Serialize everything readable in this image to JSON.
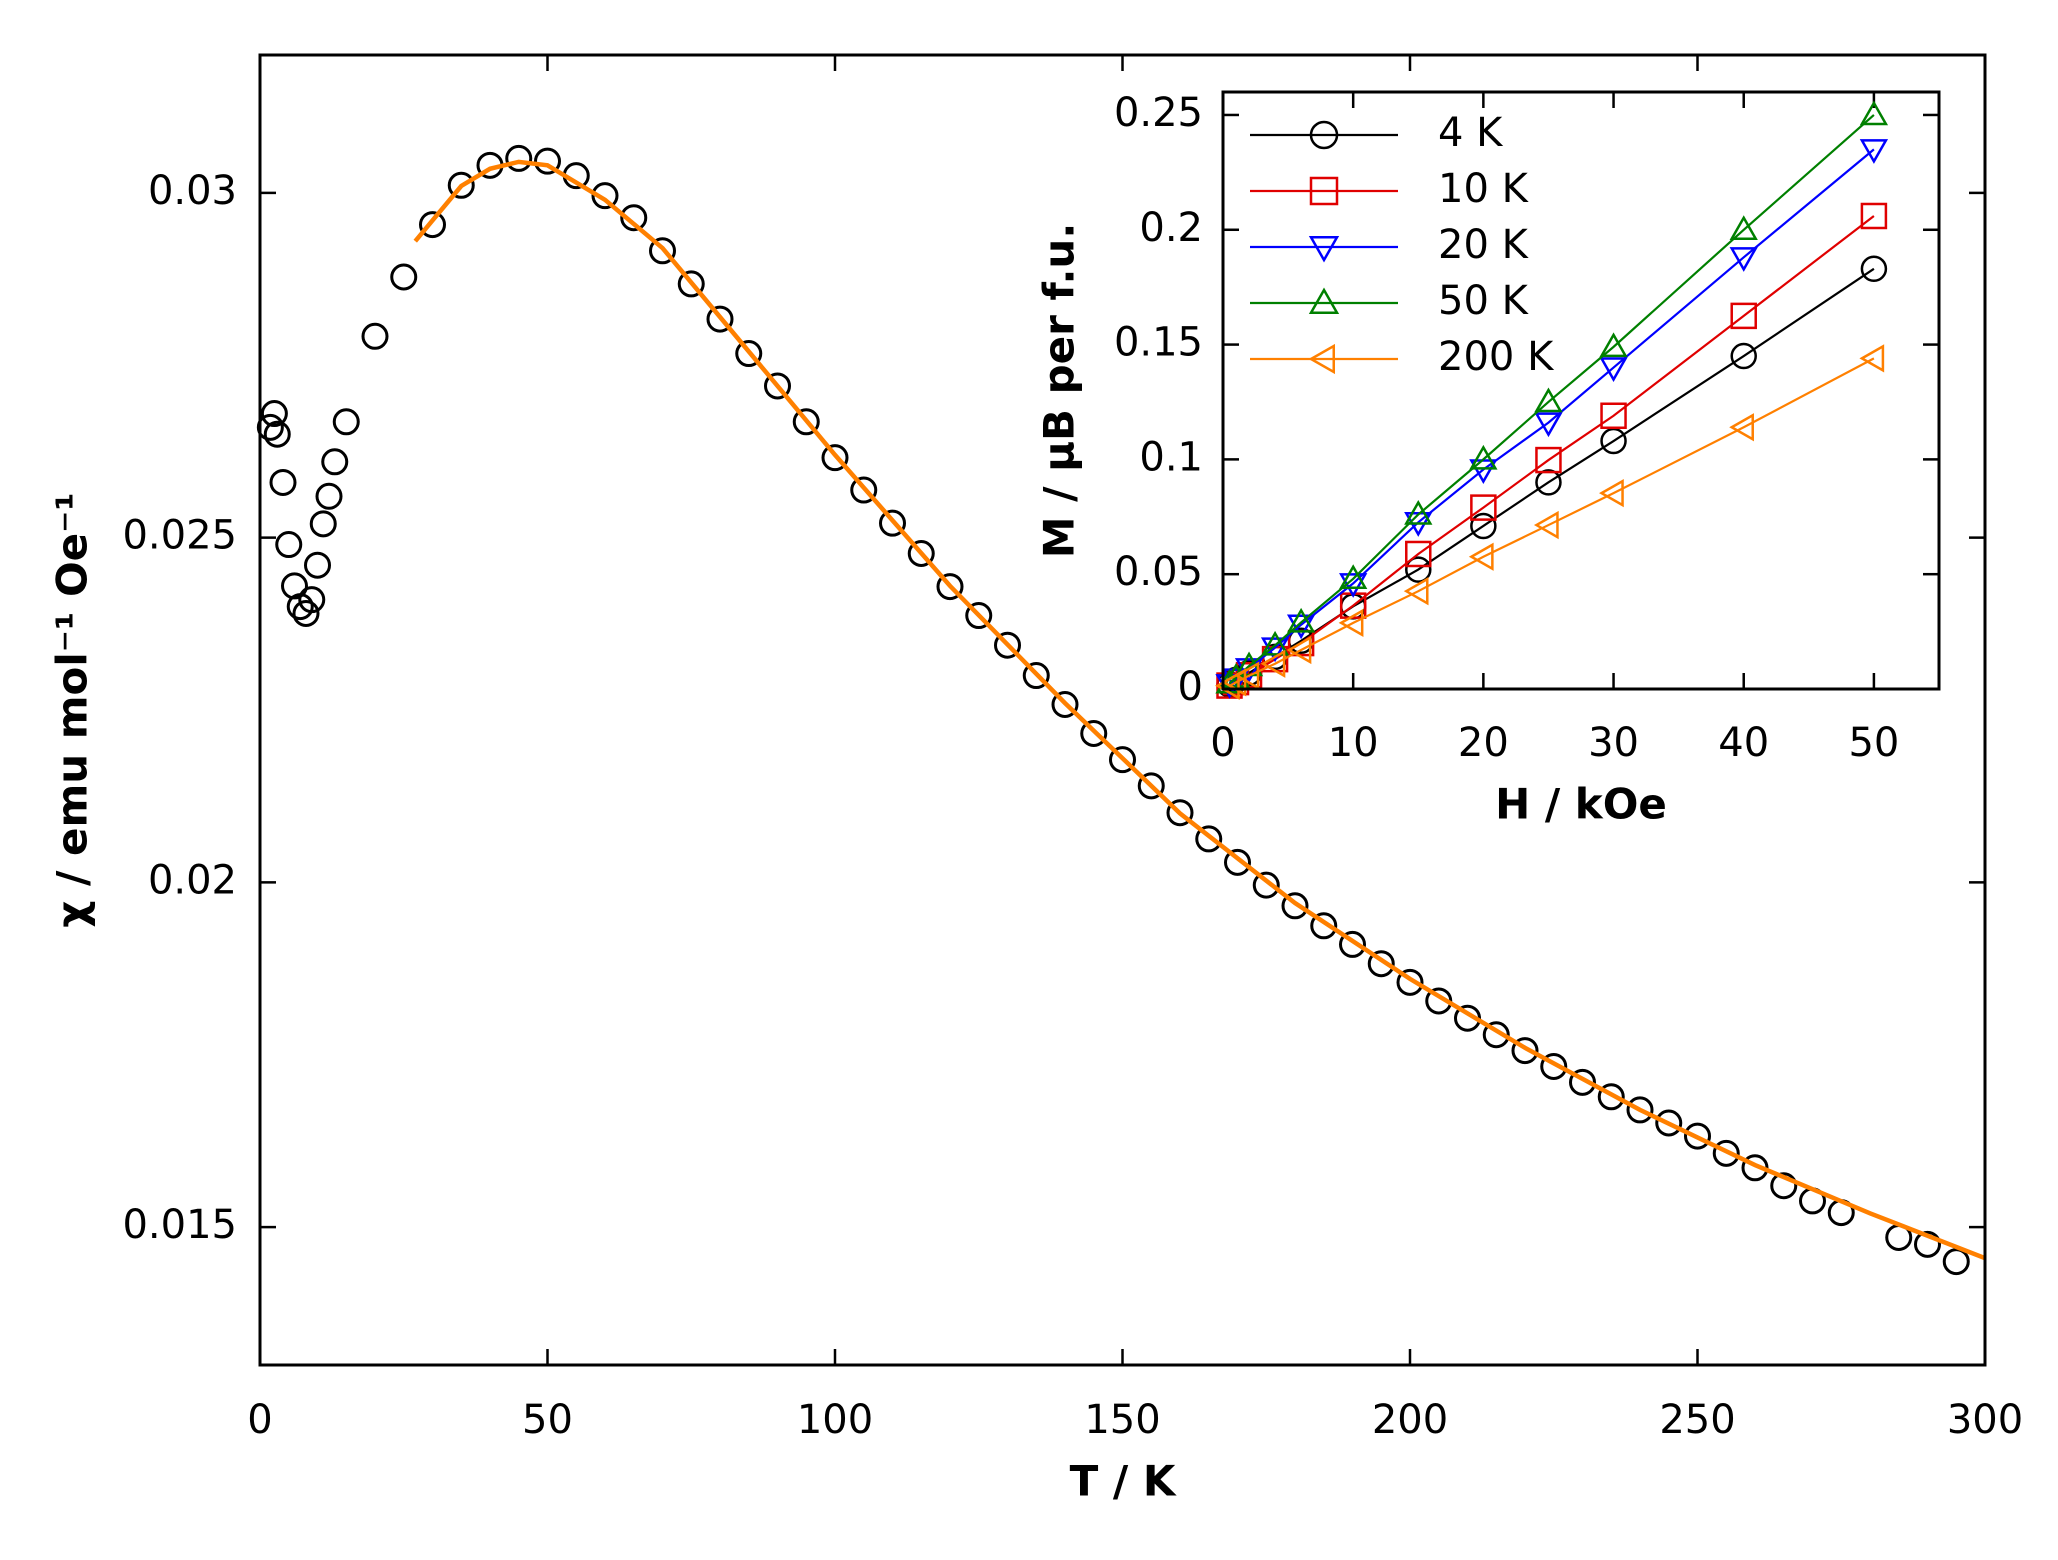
{
  "chart_data": [
    {
      "type": "scatter",
      "xlabel": "T / K",
      "ylabel": "χ / emu mol⁻¹ Oe⁻¹",
      "xlim": [
        0,
        300
      ],
      "ylim": [
        0.013,
        0.032
      ],
      "xticks": [
        0,
        50,
        100,
        150,
        200,
        250,
        300
      ],
      "yticks": [
        0.015,
        0.02,
        0.025,
        0.03
      ],
      "series": [
        {
          "color": "#000000",
          "marker": "circle",
          "x": [
            1.8,
            2.5,
            3,
            4,
            5,
            6,
            7,
            8,
            9,
            10,
            11,
            12,
            13,
            15,
            20,
            25,
            30,
            35,
            40,
            45,
            50,
            55,
            60,
            65,
            70,
            75,
            80,
            85,
            90,
            95,
            100,
            105,
            110,
            115,
            120,
            125,
            130,
            135,
            140,
            145,
            150,
            155,
            160,
            165,
            170,
            175,
            180,
            185,
            190,
            195,
            200,
            205,
            210,
            215,
            220,
            225,
            230,
            235,
            240,
            245,
            250,
            255,
            260,
            265,
            270,
            275,
            285,
            290,
            295
          ],
          "values": [
            0.0266,
            0.0268,
            0.0265,
            0.0258,
            0.0249,
            0.0243,
            0.024,
            0.0239,
            0.0241,
            0.0246,
            0.0252,
            0.0256,
            0.0261,
            0.02668,
            0.02792,
            0.02878,
            0.02954,
            0.03011,
            0.0304,
            0.0305,
            0.03046,
            0.03025,
            0.02996,
            0.02964,
            0.02916,
            0.02868,
            0.02817,
            0.02767,
            0.0272,
            0.02668,
            0.02616,
            0.02569,
            0.02521,
            0.02477,
            0.02429,
            0.02387,
            0.02344,
            0.023,
            0.02258,
            0.02216,
            0.02178,
            0.0214,
            0.02101,
            0.02063,
            0.02029,
            0.01996,
            0.01966,
            0.01937,
            0.0191,
            0.01882,
            0.01855,
            0.01828,
            0.01803,
            0.01779,
            0.01756,
            0.01733,
            0.0171,
            0.01689,
            0.0167,
            0.01651,
            0.01632,
            0.01607,
            0.01586,
            0.0156,
            0.01538,
            0.01521,
            0.01485,
            0.01475,
            0.0145
          ]
        },
        {
          "color": "#ff8000",
          "marker": "none",
          "x": [
            27,
            30,
            35,
            40,
            45,
            50,
            60,
            70,
            80,
            100,
            120,
            140,
            160,
            180,
            200,
            220,
            240,
            260,
            280,
            300
          ],
          "values": [
            0.0293,
            0.0296,
            0.0301,
            0.03035,
            0.03045,
            0.0304,
            0.0299,
            0.0292,
            0.0282,
            0.0262,
            0.0243,
            0.0226,
            0.021,
            0.0197,
            0.0186,
            0.0176,
            0.0167,
            0.0159,
            0.0152,
            0.01455
          ]
        }
      ]
    },
    {
      "type": "line",
      "xlabel": "H / kOe",
      "ylabel": "M / μB per f.u.",
      "xlim": [
        0,
        55
      ],
      "ylim": [
        0,
        0.26
      ],
      "xticks": [
        0,
        10,
        20,
        30,
        40,
        50
      ],
      "yticks": [
        0,
        0.05,
        0.1,
        0.15,
        0.2,
        0.25
      ],
      "legend": "upper left",
      "x": [
        0.5,
        1,
        2,
        4,
        6,
        10,
        15,
        20,
        25,
        30,
        40,
        50
      ],
      "series": [
        {
          "name": "4 K",
          "color": "#000000",
          "marker": "circle",
          "values": [
            0.002,
            0.004,
            0.007,
            0.014,
            0.021,
            0.036,
            0.052,
            0.071,
            0.09,
            0.108,
            0.145,
            0.183
          ]
        },
        {
          "name": "10 K",
          "color": "#e00000",
          "marker": "square",
          "values": [
            0.0015,
            0.003,
            0.006,
            0.013,
            0.02,
            0.0363,
            0.0588,
            0.079,
            0.0997,
            0.119,
            0.1625,
            0.206
          ]
        },
        {
          "name": "20 K",
          "color": "#0000ff",
          "marker": "triangle-down",
          "values": [
            0.002,
            0.0045,
            0.009,
            0.018,
            0.028,
            0.046,
            0.0726,
            0.0956,
            0.116,
            0.14,
            0.188,
            0.235
          ]
        },
        {
          "name": "50 K",
          "color": "#008000",
          "marker": "triangle-up",
          "values": [
            0.0025,
            0.005,
            0.01,
            0.019,
            0.029,
            0.048,
            0.076,
            0.1,
            0.125,
            0.149,
            0.2,
            0.25
          ]
        },
        {
          "name": "200 K",
          "color": "#ff8000",
          "marker": "triangle-left",
          "values": [
            0.0014,
            0.0029,
            0.0058,
            0.011,
            0.017,
            0.0288,
            0.0426,
            0.0576,
            0.0714,
            0.0853,
            0.114,
            0.144
          ]
        }
      ]
    }
  ]
}
